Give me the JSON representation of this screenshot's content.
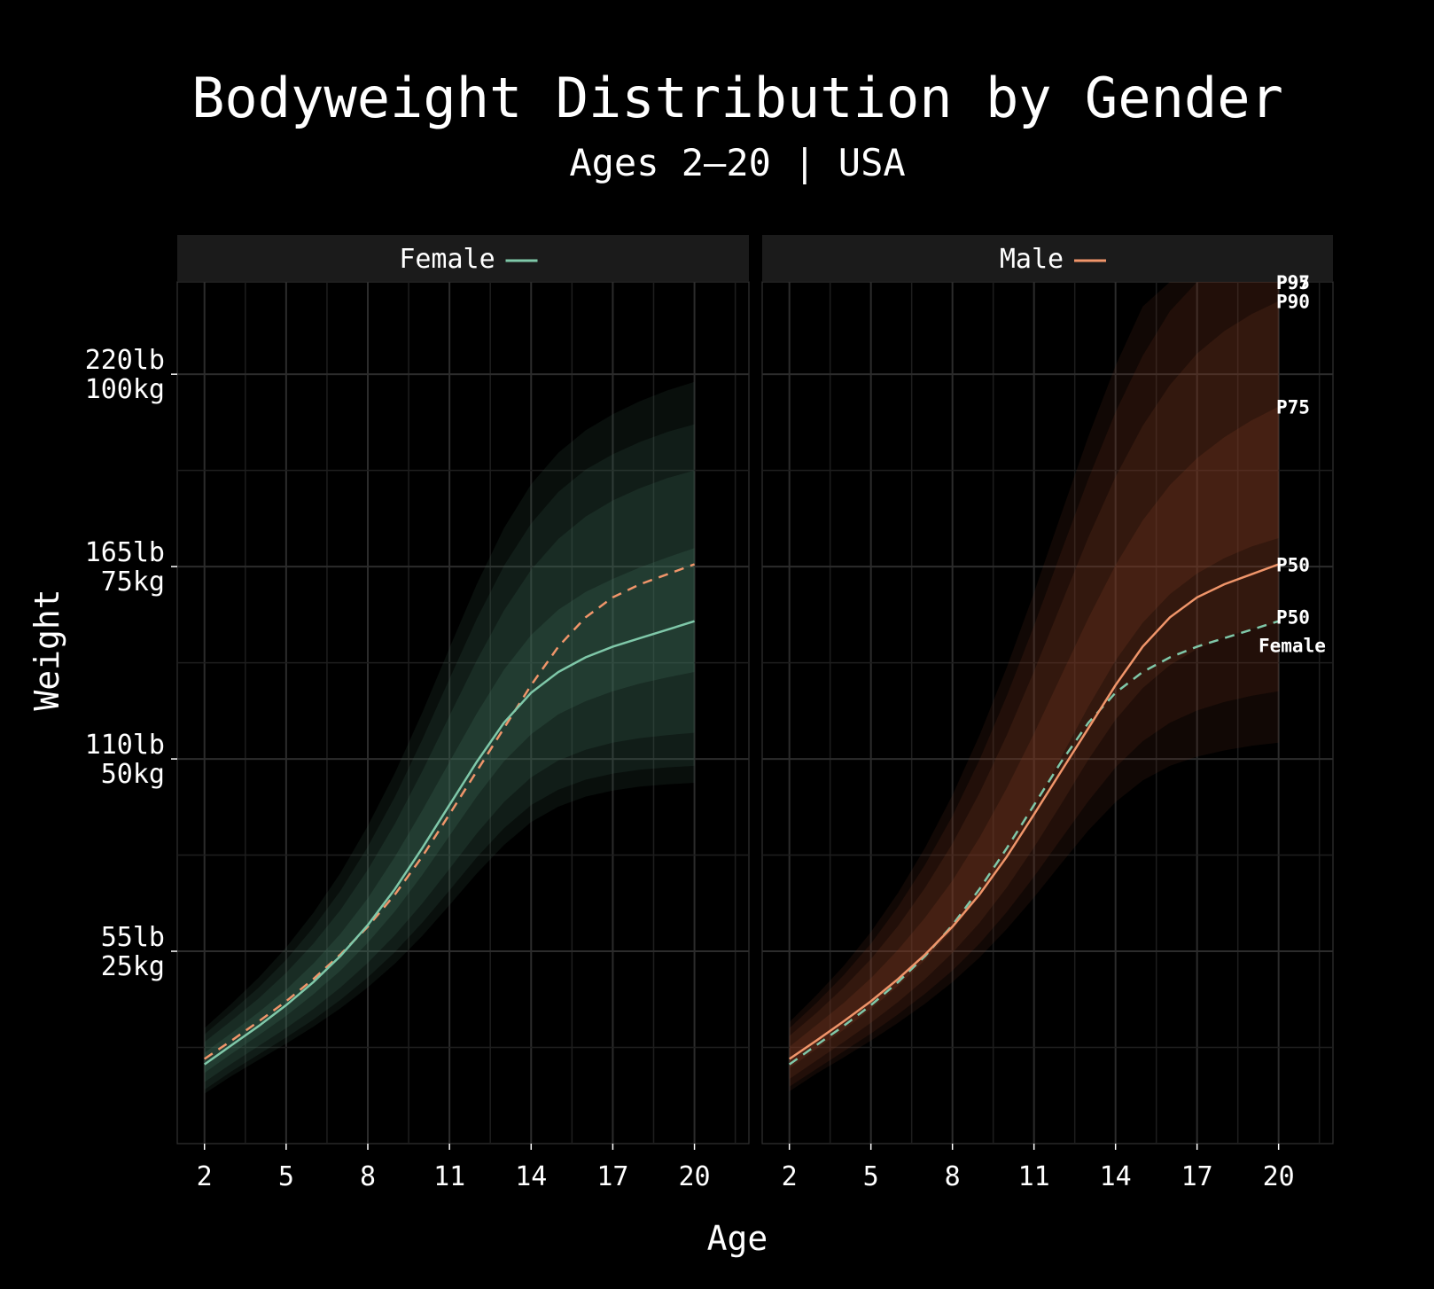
{
  "chart_data": {
    "type": "area",
    "title": "Bodyweight Distribution by Gender",
    "subtitle": "Ages 2–20 | USA",
    "xlabel": "Age",
    "ylabel": "Weight",
    "x_ticks": [
      2,
      5,
      8,
      11,
      14,
      17,
      20
    ],
    "xlim": [
      1,
      22
    ],
    "ylim": [
      0,
      112
    ],
    "y_ticks": [
      {
        "value": 25,
        "label_lb": "55lb",
        "label_kg": "25kg"
      },
      {
        "value": 50,
        "label_lb": "110lb",
        "label_kg": "50kg"
      },
      {
        "value": 75,
        "label_lb": "165lb",
        "label_kg": "75kg"
      },
      {
        "value": 100,
        "label_lb": "220lb",
        "label_kg": "100kg"
      }
    ],
    "grid": true,
    "legend": "facet-strip",
    "ages": [
      2,
      3,
      4,
      5,
      6,
      7,
      8,
      9,
      10,
      11,
      12,
      13,
      14,
      15,
      16,
      17,
      18,
      19,
      20
    ],
    "panels": [
      {
        "name": "Female",
        "strip_label": "Female",
        "color": "#7fc8a9",
        "band_color": "#3d6b57",
        "comparison": "Male",
        "comparison_color": "#f0956a",
        "percentiles": {
          "P3": [
            6.5,
            8.8,
            10.9,
            13.0,
            15.2,
            17.6,
            20.3,
            23.4,
            27.0,
            31.0,
            35.1,
            38.8,
            41.8,
            43.8,
            45.1,
            45.9,
            46.4,
            46.7,
            46.9
          ],
          "P5": [
            7.0,
            9.4,
            11.6,
            13.8,
            16.1,
            18.7,
            21.6,
            24.9,
            28.7,
            32.9,
            37.2,
            41.0,
            44.0,
            46.0,
            47.3,
            48.1,
            48.6,
            48.9,
            49.1
          ],
          "P10": [
            8.0,
            10.4,
            12.7,
            15.0,
            17.5,
            20.3,
            23.5,
            27.1,
            31.2,
            35.7,
            40.3,
            44.4,
            47.6,
            49.8,
            51.2,
            52.1,
            52.7,
            53.1,
            53.4
          ],
          "P25": [
            9.2,
            11.7,
            14.1,
            16.6,
            19.4,
            22.5,
            26.1,
            30.2,
            34.9,
            40.0,
            45.1,
            49.7,
            53.2,
            55.8,
            57.5,
            58.8,
            59.8,
            60.6,
            61.3
          ],
          "P50": [
            10.3,
            12.8,
            15.3,
            18.0,
            21.0,
            24.4,
            28.4,
            33.1,
            38.4,
            44.0,
            49.6,
            54.7,
            58.6,
            61.3,
            63.2,
            64.6,
            65.7,
            66.8,
            67.9
          ],
          "P75": [
            11.8,
            14.4,
            17.1,
            20.0,
            23.4,
            27.3,
            31.9,
            37.3,
            43.3,
            49.6,
            55.9,
            61.6,
            66.1,
            69.4,
            71.7,
            73.4,
            74.9,
            76.2,
            77.4
          ],
          "P90": [
            13.2,
            16.0,
            18.9,
            22.2,
            26.0,
            30.4,
            35.6,
            41.6,
            48.4,
            55.6,
            62.8,
            69.3,
            74.6,
            78.6,
            81.5,
            83.6,
            85.2,
            86.5,
            87.5
          ],
          "P95": [
            14.2,
            17.2,
            20.3,
            23.9,
            28.1,
            32.9,
            38.6,
            45.1,
            52.5,
            60.4,
            68.2,
            75.1,
            80.6,
            84.7,
            87.6,
            89.6,
            91.2,
            92.5,
            93.5
          ],
          "P97": [
            15.0,
            18.2,
            21.6,
            25.5,
            30.0,
            35.2,
            41.3,
            48.2,
            56.0,
            64.4,
            72.7,
            80.0,
            85.7,
            89.8,
            92.7,
            94.8,
            96.5,
            97.9,
            99.0
          ]
        },
        "median_comparison": [
          11.0,
          13.4,
          15.9,
          18.5,
          21.4,
          24.6,
          28.2,
          32.4,
          37.3,
          42.8,
          48.4,
          54.0,
          59.6,
          64.6,
          68.4,
          71.0,
          72.7,
          74.0,
          75.3
        ]
      },
      {
        "name": "Male",
        "strip_label": "Male",
        "color": "#f0956a",
        "band_color": "#7a3a22",
        "comparison": "Female",
        "comparison_color": "#7fc8a9",
        "percentiles": {
          "P3": [
            6.8,
            9.1,
            11.2,
            13.4,
            15.7,
            18.2,
            21.0,
            24.2,
            27.9,
            32.0,
            36.4,
            40.7,
            44.4,
            47.2,
            49.1,
            50.3,
            51.1,
            51.7,
            52.1
          ],
          "P5": [
            7.4,
            9.7,
            12.0,
            14.3,
            16.8,
            19.5,
            22.5,
            26.0,
            30.1,
            34.7,
            39.6,
            44.5,
            48.9,
            52.3,
            54.7,
            56.3,
            57.4,
            58.2,
            58.8
          ],
          "P10": [
            8.4,
            10.8,
            13.2,
            15.7,
            18.4,
            21.4,
            24.8,
            28.7,
            33.3,
            38.5,
            44.1,
            49.9,
            55.1,
            59.2,
            62.2,
            64.3,
            65.8,
            66.9,
            67.7
          ],
          "P25": [
            9.8,
            12.3,
            14.8,
            17.5,
            20.5,
            23.9,
            27.8,
            32.3,
            37.6,
            43.7,
            50.2,
            56.8,
            62.8,
            67.7,
            71.4,
            74.1,
            76.1,
            77.6,
            78.7
          ],
          "P50": [
            11.0,
            13.4,
            15.9,
            18.5,
            21.4,
            24.6,
            28.2,
            32.4,
            37.3,
            42.8,
            48.4,
            54.0,
            59.6,
            64.6,
            68.4,
            71.0,
            72.7,
            74.0,
            75.3
          ],
          "P75": [
            12.6,
            15.4,
            18.3,
            21.5,
            25.2,
            29.4,
            34.2,
            39.8,
            46.2,
            53.3,
            60.8,
            68.3,
            75.2,
            81.0,
            85.6,
            89.1,
            91.8,
            94.0,
            95.8
          ],
          "P90": [
            14.0,
            17.0,
            20.3,
            24.0,
            28.3,
            33.3,
            39.0,
            45.6,
            53.1,
            61.4,
            70.1,
            78.8,
            86.7,
            93.3,
            98.6,
            102.7,
            105.6,
            107.8,
            109.5
          ],
          "P95": [
            15.0,
            18.3,
            21.9,
            26.0,
            30.8,
            36.3,
            42.6,
            49.9,
            58.2,
            67.3,
            76.9,
            86.4,
            95.1,
            102.4,
            108.2,
            112.6,
            115.7,
            118.0,
            119.7
          ],
          "P97": [
            15.8,
            19.3,
            23.1,
            27.5,
            32.6,
            38.5,
            45.3,
            53.1,
            61.9,
            71.6,
            81.8,
            91.9,
            101.1,
            108.8,
            114.9,
            119.4,
            122.6,
            124.9,
            126.6
          ]
        },
        "median_comparison": [
          10.3,
          12.8,
          15.3,
          18.0,
          21.0,
          24.4,
          28.4,
          33.1,
          38.4,
          44.0,
          49.6,
          54.7,
          58.6,
          61.3,
          63.2,
          64.6,
          65.7,
          66.8,
          67.9
        ],
        "end_labels": [
          "P97",
          "P95",
          "P90",
          "P75",
          "P50"
        ],
        "comparison_label": [
          "P50",
          "Female"
        ]
      }
    ]
  }
}
